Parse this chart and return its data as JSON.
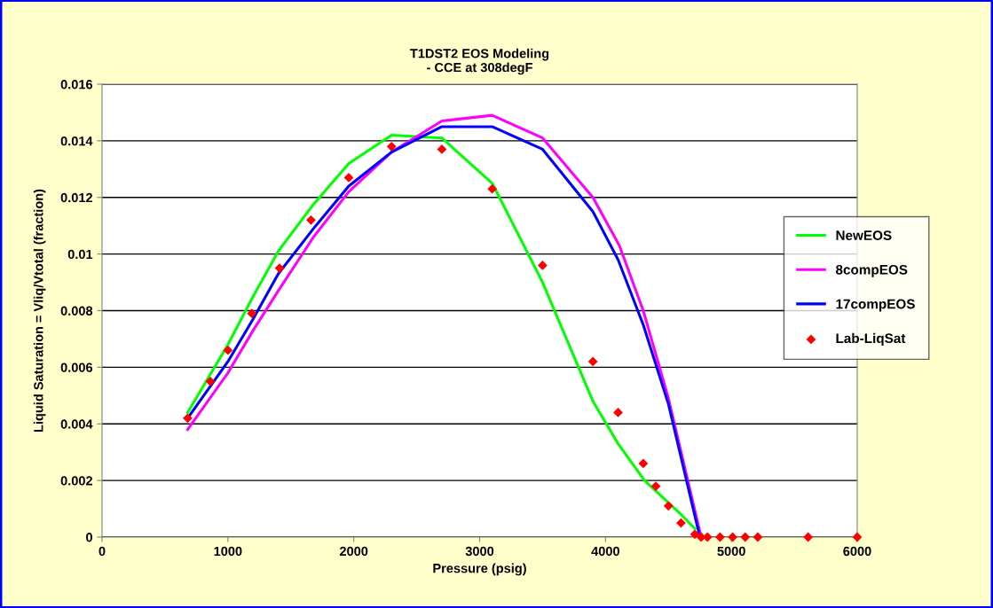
{
  "chart_data": {
    "type": "line",
    "title": "T1DST2 EOS Modeling\n- CCE at 308degF",
    "xlabel": "Pressure (psig)",
    "ylabel": "Liquid Saturation = Vliq/Vtotal (fraction)",
    "xlim": [
      0,
      6000
    ],
    "xticks": [
      0,
      1000,
      2000,
      3000,
      4000,
      5000,
      6000
    ],
    "ylim": [
      0,
      0.016
    ],
    "yticks": [
      0,
      0.002,
      0.004,
      0.006,
      0.008,
      0.01,
      0.012,
      0.014,
      0.016
    ],
    "grid": "y",
    "legend": "right",
    "marker": "none",
    "line_style": "solid",
    "series": [
      {
        "name": "NewEOS",
        "color": "#00ff00",
        "x": [
          680,
          1000,
          1200,
          1400,
          1670,
          1960,
          2300,
          2700,
          3100,
          3500,
          3900,
          4100,
          4310,
          4600,
          4710
        ],
        "values": [
          0.0044,
          0.0068,
          0.0085,
          0.0101,
          0.0117,
          0.0132,
          0.0142,
          0.0141,
          0.0125,
          0.009,
          0.0048,
          0.0033,
          0.002,
          0.0008,
          0.0003
        ]
      },
      {
        "name": "8compEOS",
        "color": "#ff00ff",
        "x": [
          680,
          1000,
          1200,
          1400,
          1680,
          1960,
          2300,
          2700,
          3100,
          3500,
          3900,
          4110,
          4300,
          4500,
          4760
        ],
        "values": [
          0.0038,
          0.0058,
          0.0073,
          0.0087,
          0.0106,
          0.0122,
          0.0136,
          0.0147,
          0.0149,
          0.0141,
          0.012,
          0.0103,
          0.008,
          0.0049,
          0
        ]
      },
      {
        "name": "17compEOS",
        "color": "#0000ff",
        "x": [
          680,
          1000,
          1200,
          1400,
          1680,
          1960,
          2300,
          2700,
          3100,
          3500,
          3900,
          4100,
          4300,
          4500,
          4750
        ],
        "values": [
          0.0042,
          0.0062,
          0.0077,
          0.0093,
          0.0109,
          0.0124,
          0.0136,
          0.0145,
          0.0145,
          0.0137,
          0.0115,
          0.0098,
          0.0075,
          0.0047,
          0
        ]
      },
      {
        "name": "Lab-LiqSat",
        "type": "scatter",
        "marker": "diamond",
        "color": "#ff0000",
        "x": [
          680,
          860,
          1000,
          1190,
          1410,
          1660,
          1960,
          2300,
          2700,
          3100,
          3500,
          3900,
          4100,
          4300,
          4400,
          4500,
          4600,
          4710,
          4760,
          4810,
          4910,
          5010,
          5110,
          5210,
          5610,
          6000
        ],
        "values": [
          0.0042,
          0.0055,
          0.0066,
          0.0079,
          0.0095,
          0.0112,
          0.0127,
          0.0138,
          0.0137,
          0.0123,
          0.0096,
          0.0062,
          0.0044,
          0.0026,
          0.0018,
          0.0011,
          0.0005,
          0.0001,
          0,
          0,
          0,
          0,
          0,
          0,
          0,
          0
        ]
      }
    ]
  }
}
